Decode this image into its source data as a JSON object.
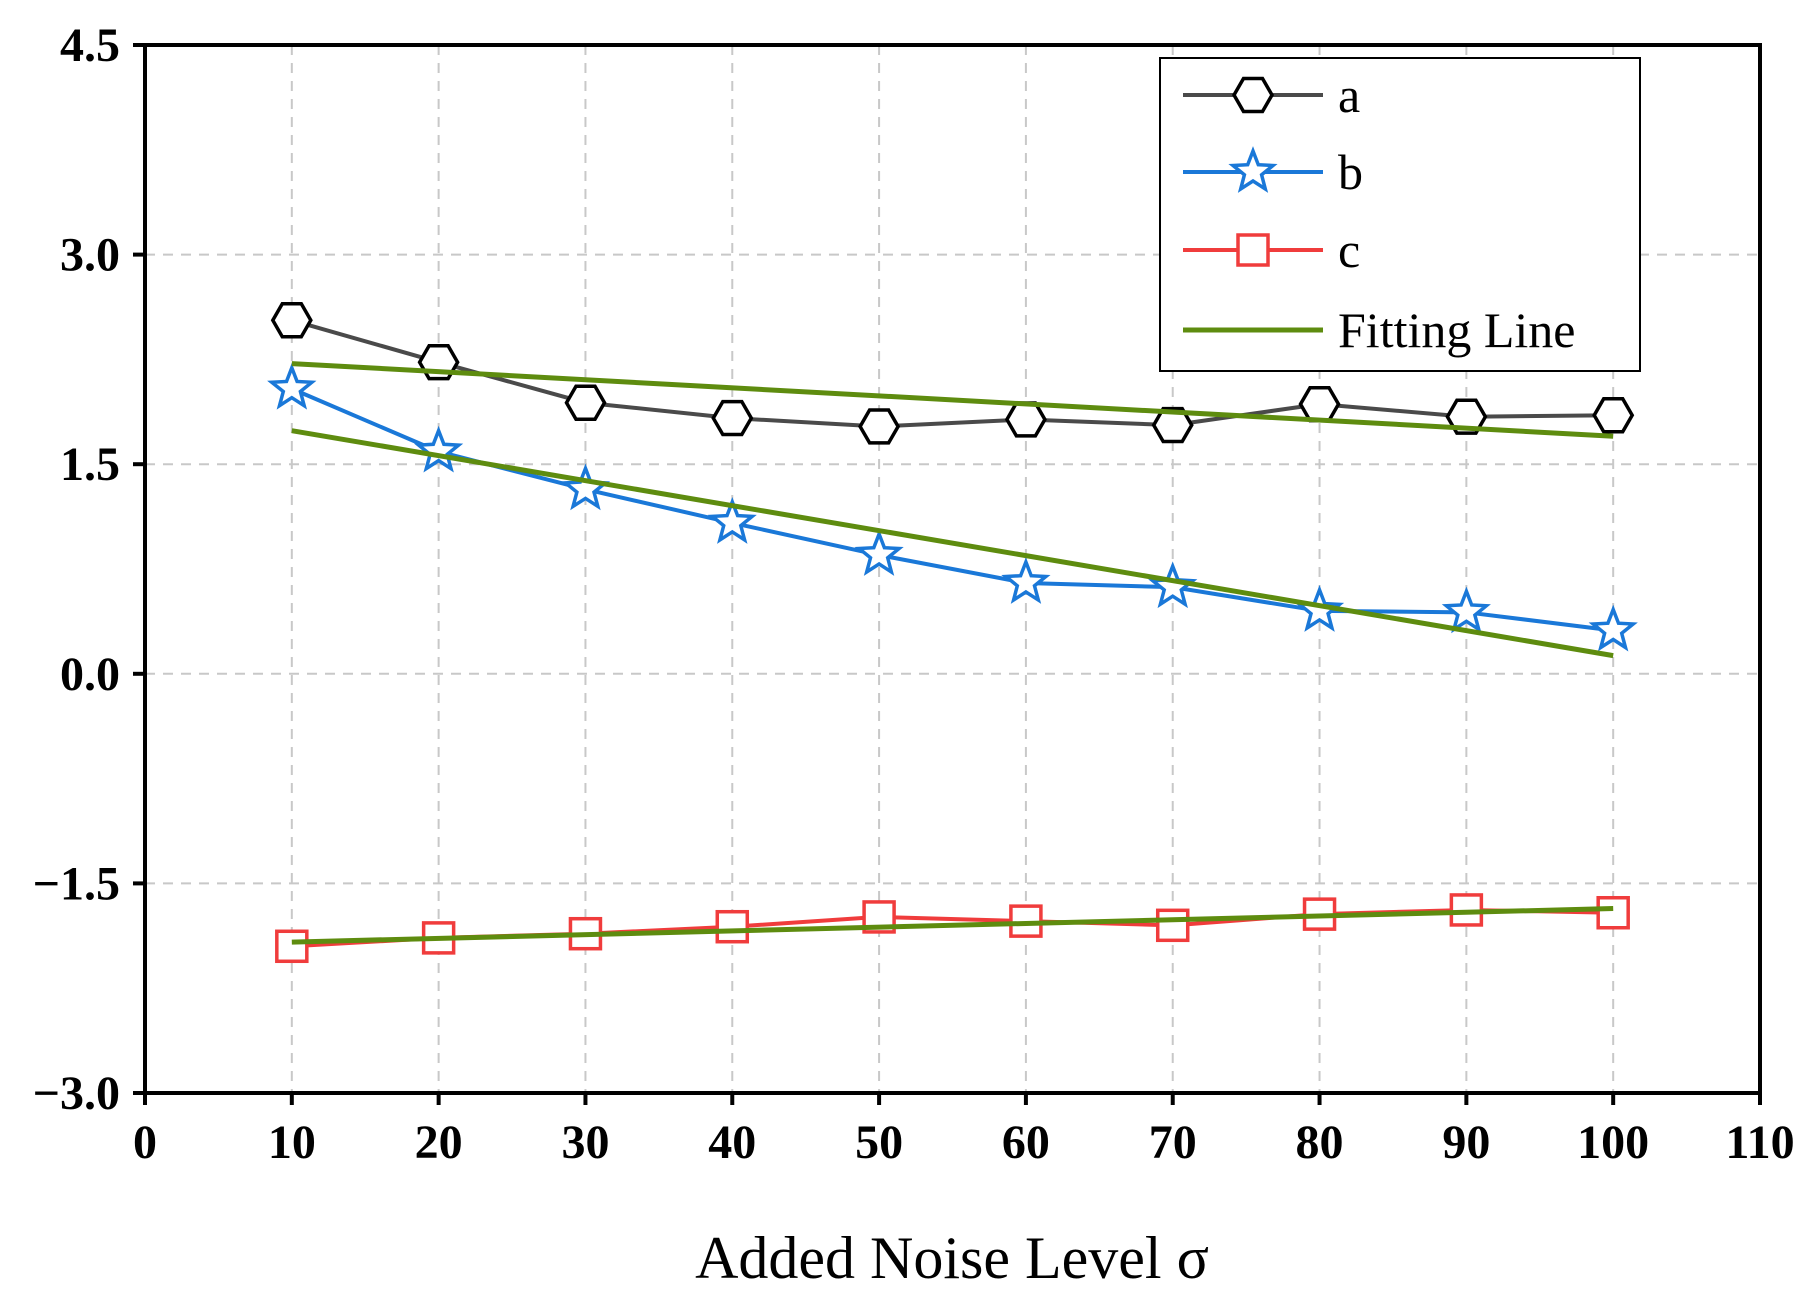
{
  "chart_data": {
    "type": "line",
    "title": "",
    "xlabel": "Added Noise Level σ",
    "ylabel": "",
    "xlim": [
      0,
      110
    ],
    "ylim": [
      -3.0,
      4.5
    ],
    "x_ticks": [
      0,
      10,
      20,
      30,
      40,
      50,
      60,
      70,
      80,
      90,
      100,
      110
    ],
    "x_tick_labels": [
      "0",
      "10",
      "20",
      "30",
      "40",
      "50",
      "60",
      "70",
      "80",
      "90",
      "100",
      "110"
    ],
    "y_ticks": [
      -3.0,
      -1.5,
      0.0,
      1.5,
      3.0,
      4.5
    ],
    "y_tick_labels": [
      "−3.0",
      "−1.5",
      "0.0",
      "1.5",
      "3.0",
      "4.5"
    ],
    "grid": true,
    "legend_position": "top-right",
    "x": [
      10,
      20,
      30,
      40,
      50,
      60,
      70,
      80,
      90,
      100
    ],
    "series": [
      {
        "name": "a",
        "marker": "hexagon",
        "color": "#4a4a4a",
        "marker_color": "#000000",
        "values": [
          2.53,
          2.23,
          1.94,
          1.83,
          1.77,
          1.82,
          1.78,
          1.93,
          1.84,
          1.85
        ]
      },
      {
        "name": "b",
        "marker": "star",
        "color": "#1a78d8",
        "marker_color": "#1a78d8",
        "values": [
          2.04,
          1.59,
          1.32,
          1.08,
          0.85,
          0.65,
          0.62,
          0.45,
          0.44,
          0.31
        ]
      },
      {
        "name": "c",
        "marker": "square",
        "color": "#f03c3c",
        "marker_color": "#f03c3c",
        "values": [
          -1.95,
          -1.89,
          -1.86,
          -1.81,
          -1.74,
          -1.77,
          -1.8,
          -1.72,
          -1.69,
          -1.71
        ]
      }
    ],
    "fitting_lines": [
      {
        "for": "a",
        "x": [
          10,
          100
        ],
        "values": [
          2.22,
          1.7
        ]
      },
      {
        "for": "b",
        "x": [
          10,
          100
        ],
        "values": [
          1.74,
          0.13
        ]
      },
      {
        "for": "c",
        "x": [
          10,
          100
        ],
        "values": [
          -1.92,
          -1.68
        ]
      }
    ],
    "fitting_line_label": "Fitting Line",
    "fitting_line_color": "#5e8c0f"
  }
}
